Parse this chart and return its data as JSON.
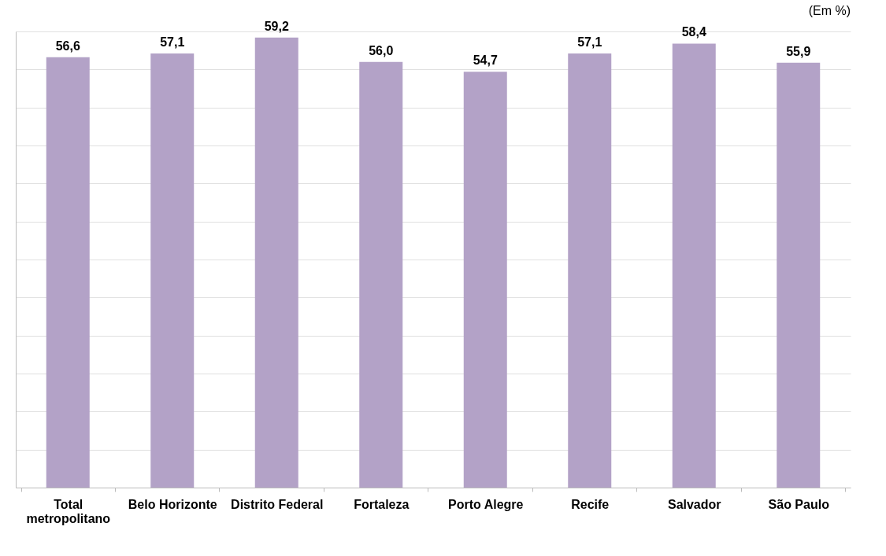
{
  "chart_data": {
    "type": "bar",
    "subtitle": "(Em %)",
    "categories": [
      "Total metropolitano",
      "Belo Horizonte",
      "Distrito Federal",
      "Fortaleza",
      "Porto Alegre",
      "Recife",
      "Salvador",
      "São Paulo"
    ],
    "values": [
      56.6,
      57.1,
      59.2,
      56.0,
      54.7,
      57.1,
      58.4,
      55.9
    ],
    "color": "#b3a2c7",
    "value_labels": [
      "56,6",
      "57,1",
      "59,2",
      "56,0",
      "54,7",
      "57,1",
      "58,4",
      "55,9"
    ],
    "grid": "y",
    "tick_labels": "x"
  }
}
